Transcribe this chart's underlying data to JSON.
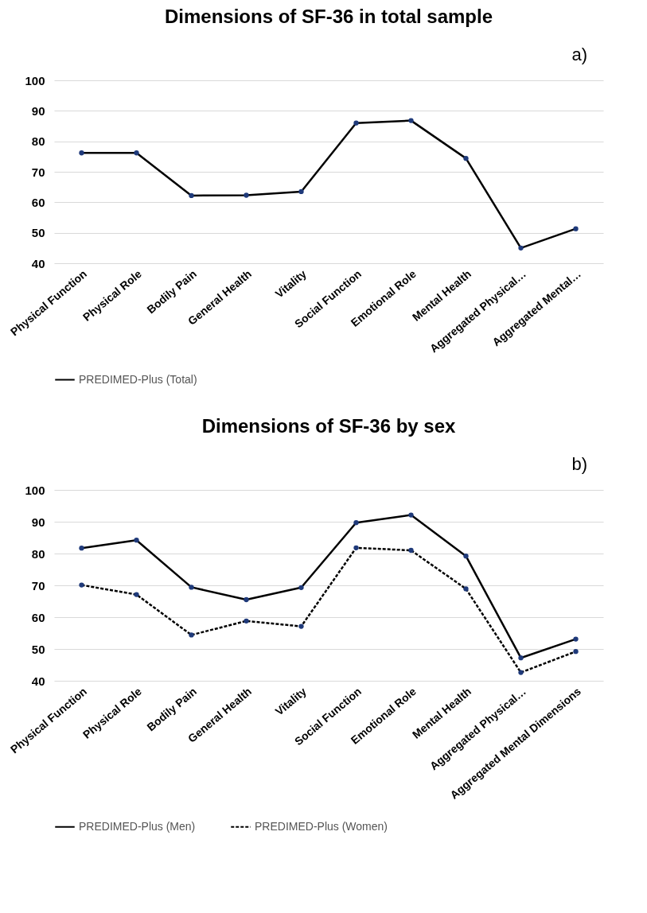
{
  "chart_data": [
    {
      "type": "line",
      "title": "Dimensions of SF-36 in total sample",
      "annotations": [
        "a)"
      ],
      "categories": [
        "Physical Function",
        "Physical Role",
        "Bodily Pain",
        "General Health",
        "Vitality",
        "Social Function",
        "Emotional Role",
        "Mental Health",
        "Aggregated Physical…",
        "Aggregated Mental…"
      ],
      "series": [
        {
          "name": "PREDIMED-Plus (Total)",
          "color": "#000000",
          "line_style": "solid",
          "values": [
            76.2,
            76.2,
            62.2,
            62.3,
            63.5,
            86.0,
            86.8,
            74.4,
            45.0,
            51.3
          ]
        }
      ],
      "ylim": [
        40,
        100
      ],
      "yticks": [
        40,
        50,
        60,
        70,
        80,
        90,
        100
      ],
      "grid": "y",
      "legend": "bottom",
      "marker": "circle"
    },
    {
      "type": "line",
      "title": "Dimensions of SF-36 by sex",
      "annotations": [
        "b)"
      ],
      "categories": [
        "Physical Function",
        "Physical Role",
        "Bodily Pain",
        "General Health",
        "Vitality",
        "Social Function",
        "Emotional Role",
        "Mental Health",
        "Aggregated Physical…",
        "Aggregated Mental Dimensions"
      ],
      "series": [
        {
          "name": "PREDIMED-Plus (Men)",
          "color": "#000000",
          "line_style": "solid",
          "values": [
            81.7,
            84.2,
            69.4,
            65.5,
            69.3,
            89.7,
            92.1,
            79.2,
            47.2,
            53.1
          ]
        },
        {
          "name": "PREDIMED-Plus (Women)",
          "color": "#000000",
          "line_style": "dashed",
          "values": [
            70.1,
            67.1,
            54.4,
            58.8,
            57.1,
            81.8,
            81.0,
            68.9,
            42.6,
            49.2
          ]
        }
      ],
      "ylim": [
        40,
        100
      ],
      "yticks": [
        40,
        50,
        60,
        70,
        80,
        90,
        100
      ],
      "grid": "y",
      "legend": "bottom",
      "marker": "circle"
    }
  ]
}
